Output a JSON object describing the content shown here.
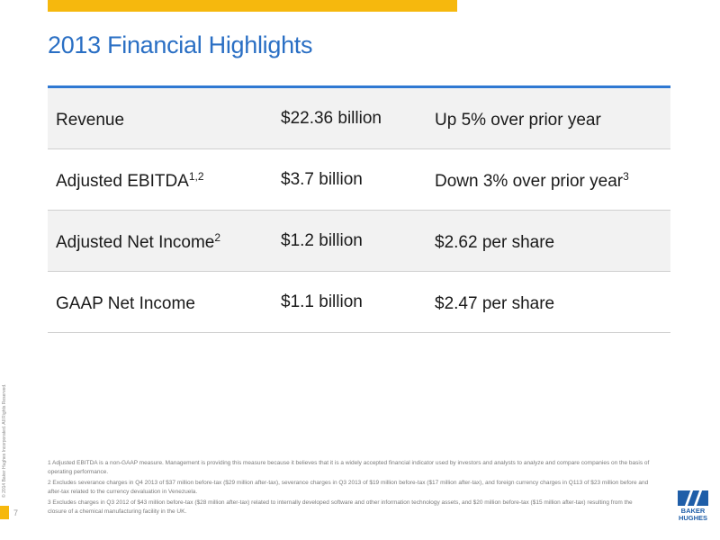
{
  "header": {
    "title": "2013 Financial Highlights"
  },
  "colors": {
    "accent_yellow": "#f6b80d",
    "title_blue": "#2a6fc4",
    "rule_blue": "#2f78d2",
    "row_shade": "#f2f2f2",
    "logo_blue": "#1f5ea8"
  },
  "table": {
    "rows": [
      {
        "label": "Revenue",
        "label_sup": "",
        "amount": "$22.36 billion",
        "note": "Up 5% over prior year",
        "note_sup": ""
      },
      {
        "label": "Adjusted EBITDA",
        "label_sup": "1,2",
        "amount": "$3.7 billion",
        "note": "Down 3% over prior year",
        "note_sup": "3"
      },
      {
        "label": "Adjusted Net Income",
        "label_sup": "2",
        "amount": "$1.2 billion",
        "note": "$2.62 per share",
        "note_sup": ""
      },
      {
        "label": "GAAP Net Income",
        "label_sup": "",
        "amount": "$1.1 billion",
        "note": "$2.47 per share",
        "note_sup": ""
      }
    ]
  },
  "footnotes": {
    "note1": "1 Adjusted EBITDA is a non-GAAP measure. Management is providing this measure because it believes that it is a widely accepted financial indicator used by investors and analysts to analyze and compare companies on the basis of operating performance.",
    "note2": "2 Excludes severance charges in Q4 2013 of $37 million before-tax ($29 million after-tax), severance charges in Q3 2013 of $19 million before-tax ($17 million after-tax), and foreign currency charges in Q113 of $23 million before and after-tax related to the currency devaluation in Venezuela.",
    "note3": "3 Excludes charges in Q3 2012 of $43 million before-tax ($28 million after-tax) related to internally developed software and other information technology assets, and $20 million before-tax ($15 million after-tax) resulting from the closure of a chemical manufacturing facility in the UK."
  },
  "footer": {
    "copyright": "© 2014 Baker Hughes Incorporated. All Rights Reserved.",
    "page_number": "7",
    "logo_line1": "BAKER",
    "logo_line2": "HUGHES"
  }
}
